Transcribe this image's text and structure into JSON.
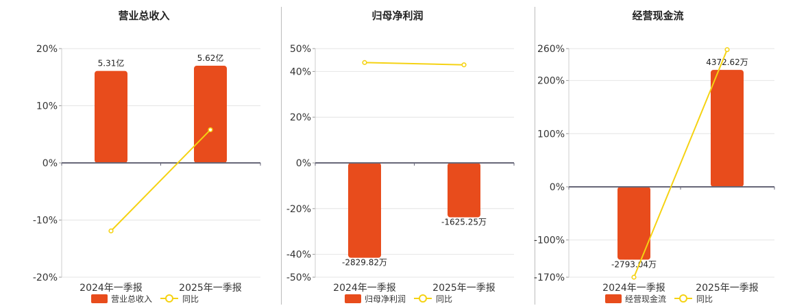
{
  "chart_data": [
    {
      "type": "bar",
      "title": "营业总收入",
      "categories": [
        "2024年一季报",
        "2025年一季报"
      ],
      "y_ticks": [
        "20%",
        "10%",
        "0%",
        "-10%",
        "-20%"
      ],
      "y_tick_values": [
        20,
        10,
        0,
        -10,
        -20
      ],
      "ylim": [
        -20,
        20
      ],
      "series": [
        {
          "name": "营业总收入",
          "kind": "bar",
          "values": [
            16.1,
            17.0
          ],
          "labels": [
            "5.31亿",
            "5.62亿"
          ],
          "color": "#e84c1c"
        },
        {
          "name": "同比",
          "kind": "line",
          "values": [
            -11.9,
            5.8
          ],
          "color": "#f5d212"
        }
      ],
      "grid": true,
      "legend": "bottom"
    },
    {
      "type": "bar",
      "title": "归母净利润",
      "categories": [
        "2024年一季报",
        "2025年一季报"
      ],
      "y_ticks": [
        "50%",
        "40%",
        "20%",
        "0%",
        "-20%",
        "-40%",
        "-50%"
      ],
      "y_tick_values": [
        50,
        40,
        20,
        0,
        -20,
        -40,
        -50
      ],
      "ylim": [
        -50,
        50
      ],
      "series": [
        {
          "name": "归母净利润",
          "kind": "bar",
          "values": [
            -41.5,
            -23.8
          ],
          "labels": [
            "-2829.82万",
            "-1625.25万"
          ],
          "color": "#e84c1c"
        },
        {
          "name": "同比",
          "kind": "line",
          "values": [
            43.9,
            42.9
          ],
          "color": "#f5d212"
        }
      ],
      "grid": true,
      "legend": "bottom"
    },
    {
      "type": "bar",
      "title": "经营现金流",
      "categories": [
        "2024年一季报",
        "2025年一季报"
      ],
      "y_ticks": [
        "260%",
        "200%",
        "100%",
        "0%",
        "-100%",
        "-170%"
      ],
      "y_tick_values": [
        260,
        200,
        100,
        0,
        -100,
        -170
      ],
      "ylim": [
        -170,
        260
      ],
      "series": [
        {
          "name": "经营现金流",
          "kind": "bar",
          "values": [
            -137,
            220
          ],
          "labels": [
            "-2793.04万",
            "4372.62万"
          ],
          "color": "#e84c1c"
        },
        {
          "name": "同比",
          "kind": "line",
          "values": [
            -170,
            258
          ],
          "color": "#f5d212"
        }
      ],
      "grid": true,
      "legend": "bottom"
    }
  ]
}
